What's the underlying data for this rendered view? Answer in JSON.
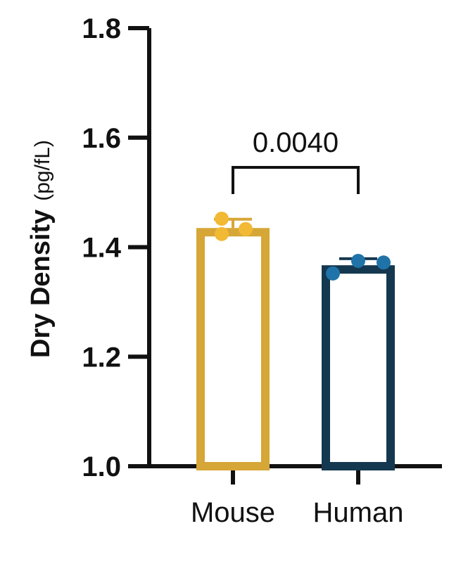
{
  "chart_data": {
    "type": "bar",
    "title": "",
    "xlabel": "",
    "ylabel": "Dry Density",
    "ylabel_unit": "(pg/fL)",
    "categories": [
      "Mouse",
      "Human"
    ],
    "values": [
      1.435,
      1.367
    ],
    "errors": [
      0.016,
      0.012
    ],
    "points": [
      [
        1.452,
        1.424,
        1.433
      ],
      [
        1.352,
        1.375,
        1.372
      ]
    ],
    "colors": [
      "#D6A637",
      "#14384F"
    ],
    "point_colors": [
      "#F2B935",
      "#1F73A8"
    ],
    "ylim": [
      1.0,
      1.8
    ],
    "yticks": [
      "1.0",
      "1.2",
      "1.4",
      "1.6",
      "1.8"
    ],
    "annotations": [
      {
        "type": "significance",
        "from": "Mouse",
        "to": "Human",
        "label": "0.0040"
      }
    ],
    "grid": false,
    "legend": "none"
  }
}
